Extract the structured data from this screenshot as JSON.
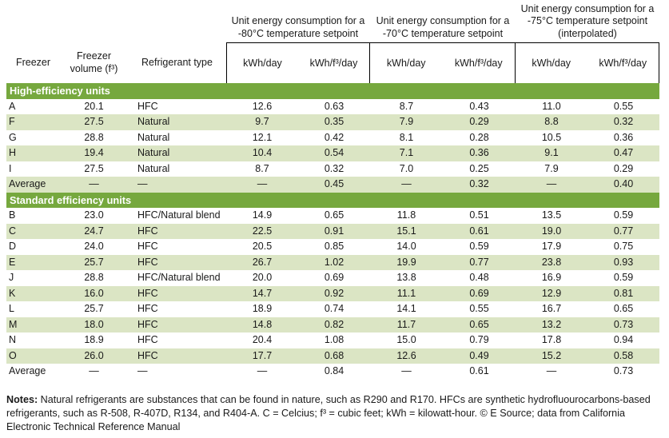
{
  "chart_data": {
    "type": "table",
    "column_groups": [
      {
        "title": "Unit energy consumption for a\n-80°C temperature setpoint"
      },
      {
        "title": "Unit energy consumption for a\n-70°C temperature setpoint"
      },
      {
        "title": "Unit energy consumption for a\n-75°C temperature setpoint\n(interpolated)"
      }
    ],
    "columns": [
      "Freezer",
      "Freezer\nvolume (f³)",
      "Refrigerant type",
      "kWh/day",
      "kWh/f³/day",
      "kWh/day",
      "kWh/f³/day",
      "kWh/day",
      "kWh/f³/day"
    ],
    "sections": [
      {
        "label": "High-efficiency units",
        "rows": [
          [
            "A",
            "20.1",
            "HFC",
            "12.6",
            "0.63",
            "8.7",
            "0.43",
            "11.0",
            "0.55"
          ],
          [
            "F",
            "27.5",
            "Natural",
            "9.7",
            "0.35",
            "7.9",
            "0.29",
            "8.8",
            "0.32"
          ],
          [
            "G",
            "28.8",
            "Natural",
            "12.1",
            "0.42",
            "8.1",
            "0.28",
            "10.5",
            "0.36"
          ],
          [
            "H",
            "19.4",
            "Natural",
            "10.4",
            "0.54",
            "7.1",
            "0.36",
            "9.1",
            "0.47"
          ],
          [
            "I",
            "27.5",
            "Natural",
            "8.7",
            "0.32",
            "7.0",
            "0.25",
            "7.9",
            "0.29"
          ],
          [
            "Average",
            "—",
            "—",
            "—",
            "0.45",
            "—",
            "0.32",
            "—",
            "0.40"
          ]
        ]
      },
      {
        "label": "Standard efficiency units",
        "rows": [
          [
            "B",
            "23.0",
            "HFC/Natural blend",
            "14.9",
            "0.65",
            "11.8",
            "0.51",
            "13.5",
            "0.59"
          ],
          [
            "C",
            "24.7",
            "HFC",
            "22.5",
            "0.91",
            "15.1",
            "0.61",
            "19.0",
            "0.77"
          ],
          [
            "D",
            "24.0",
            "HFC",
            "20.5",
            "0.85",
            "14.0",
            "0.59",
            "17.9",
            "0.75"
          ],
          [
            "E",
            "25.7",
            "HFC",
            "26.7",
            "1.02",
            "19.9",
            "0.77",
            "23.8",
            "0.93"
          ],
          [
            "J",
            "28.8",
            "HFC/Natural blend",
            "20.0",
            "0.69",
            "13.8",
            "0.48",
            "16.9",
            "0.59"
          ],
          [
            "K",
            "16.0",
            "HFC",
            "14.7",
            "0.92",
            "11.1",
            "0.69",
            "12.9",
            "0.81"
          ],
          [
            "L",
            "25.7",
            "HFC",
            "18.9",
            "0.74",
            "14.1",
            "0.55",
            "16.7",
            "0.65"
          ],
          [
            "M",
            "18.0",
            "HFC",
            "14.8",
            "0.82",
            "11.7",
            "0.65",
            "13.2",
            "0.73"
          ],
          [
            "N",
            "18.9",
            "HFC",
            "20.4",
            "1.08",
            "15.0",
            "0.79",
            "17.8",
            "0.94"
          ],
          [
            "O",
            "26.0",
            "HFC",
            "17.7",
            "0.68",
            "12.6",
            "0.49",
            "15.2",
            "0.58"
          ],
          [
            "Average",
            "—",
            "—",
            "—",
            "0.84",
            "—",
            "0.61",
            "—",
            "0.73"
          ]
        ]
      }
    ],
    "colors": {
      "section_bar_green": "#76a83e",
      "row_stripe_green": "#dbe5c4",
      "text": "#1a1a1a",
      "border": "#000000"
    }
  },
  "notes": {
    "label": "Notes:",
    "text": " Natural refrigerants are substances that can be found in nature, such as R290 and R170. HFCs are synthetic hydrofluourocarbons-based refrigerants, such as R-508, R-407D, R134, and R404-A. C = Celcius; f³ = cubic feet; kWh = kilowatt-hour. © E Source; data from California Electronic Technical Reference Manual"
  }
}
